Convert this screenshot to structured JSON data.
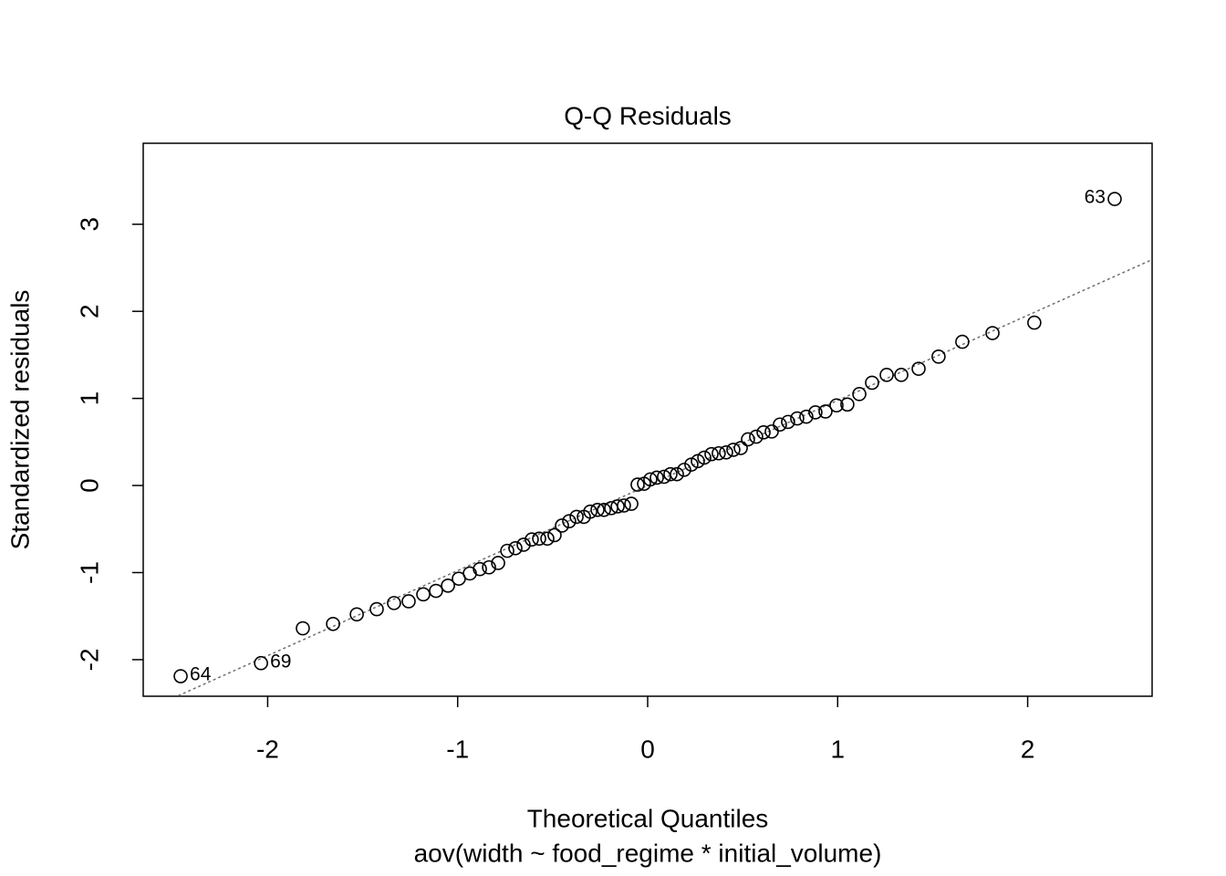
{
  "chart_data": {
    "type": "scatter",
    "title": "Q-Q Residuals",
    "xlabel": "Theoretical Quantiles",
    "subtitle": "aov(width ~ food_regime * initial_volume)",
    "ylabel": "Standardized residuals",
    "x": [
      -2.458,
      -2.035,
      -1.815,
      -1.656,
      -1.531,
      -1.426,
      -1.335,
      -1.258,
      -1.181,
      -1.114,
      -1.051,
      -0.994,
      -0.936,
      -0.883,
      -0.835,
      -0.787,
      -0.739,
      -0.696,
      -0.653,
      -0.61,
      -0.571,
      -0.528,
      -0.49,
      -0.451,
      -0.413,
      -0.374,
      -0.336,
      -0.302,
      -0.264,
      -0.23,
      -0.192,
      -0.158,
      -0.125,
      -0.086,
      -0.053,
      -0.019,
      0.014,
      0.048,
      0.086,
      0.12,
      0.154,
      0.192,
      0.23,
      0.264,
      0.298,
      0.336,
      0.374,
      0.413,
      0.451,
      0.49,
      0.528,
      0.571,
      0.61,
      0.653,
      0.696,
      0.739,
      0.787,
      0.835,
      0.883,
      0.936,
      0.994,
      1.051,
      1.114,
      1.181,
      1.258,
      1.335,
      1.426,
      1.531,
      1.656,
      1.815,
      2.035,
      2.458
    ],
    "values": [
      -2.19,
      -2.04,
      -1.64,
      -1.59,
      -1.48,
      -1.42,
      -1.35,
      -1.33,
      -1.25,
      -1.21,
      -1.15,
      -1.07,
      -1.01,
      -0.96,
      -0.94,
      -0.89,
      -0.75,
      -0.72,
      -0.68,
      -0.62,
      -0.61,
      -0.61,
      -0.57,
      -0.46,
      -0.41,
      -0.36,
      -0.36,
      -0.3,
      -0.28,
      -0.28,
      -0.26,
      -0.24,
      -0.23,
      -0.21,
      0.01,
      0.02,
      0.07,
      0.09,
      0.1,
      0.13,
      0.13,
      0.18,
      0.24,
      0.28,
      0.32,
      0.36,
      0.37,
      0.38,
      0.41,
      0.43,
      0.53,
      0.56,
      0.61,
      0.62,
      0.7,
      0.73,
      0.77,
      0.79,
      0.84,
      0.85,
      0.92,
      0.93,
      1.05,
      1.18,
      1.27,
      1.27,
      1.34,
      1.48,
      1.65,
      1.75,
      1.87,
      3.29
    ],
    "point_labels": [
      "64",
      "69",
      null,
      null,
      null,
      null,
      null,
      null,
      null,
      null,
      null,
      null,
      null,
      null,
      null,
      null,
      null,
      null,
      null,
      null,
      null,
      null,
      null,
      null,
      null,
      null,
      null,
      null,
      null,
      null,
      null,
      null,
      null,
      null,
      null,
      null,
      null,
      null,
      null,
      null,
      null,
      null,
      null,
      null,
      null,
      null,
      null,
      null,
      null,
      null,
      null,
      null,
      null,
      null,
      null,
      null,
      null,
      null,
      null,
      null,
      null,
      null,
      null,
      null,
      null,
      null,
      null,
      null,
      null,
      null,
      null,
      "63"
    ],
    "color": "#000000",
    "reference_line": {
      "intercept": 0,
      "slope": 0.977,
      "color": "#707070"
    },
    "xlim": [
      -2.655,
      2.655
    ],
    "xticks": [
      -2,
      -1,
      0,
      1,
      2
    ],
    "ylim": [
      -2.42,
      3.93
    ],
    "yticks": [
      -2,
      -1,
      0,
      1,
      2,
      3
    ]
  }
}
